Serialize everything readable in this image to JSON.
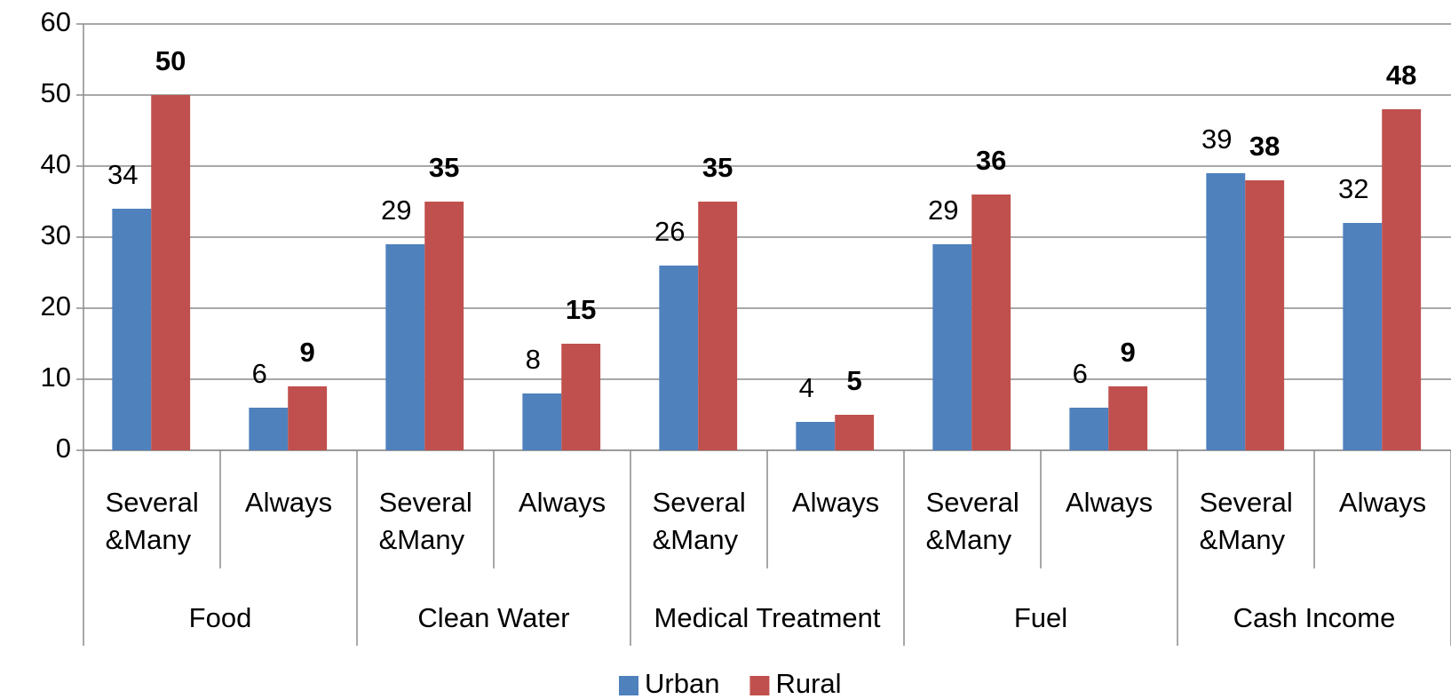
{
  "chart_data": {
    "type": "bar",
    "categories": [
      "Several &Many",
      "Always",
      "Several &Many",
      "Always",
      "Several &Many",
      "Always",
      "Several &Many",
      "Always",
      "Several &Many",
      "Always"
    ],
    "groups": [
      "Food",
      "Clean Water",
      "Medical Treatment",
      "Fuel",
      "Cash Income"
    ],
    "series": [
      {
        "name": "Urban",
        "color": "#4f81bd",
        "values": [
          34,
          6,
          29,
          8,
          26,
          4,
          29,
          6,
          39,
          32
        ]
      },
      {
        "name": "Rural",
        "color": "#c0504d",
        "values": [
          50,
          9,
          35,
          15,
          35,
          5,
          36,
          9,
          38,
          48
        ]
      }
    ],
    "ylim": [
      0,
      60
    ],
    "yticks": [
      0,
      10,
      20,
      30,
      40,
      50,
      60
    ],
    "grid": true,
    "legend": "bottom"
  }
}
